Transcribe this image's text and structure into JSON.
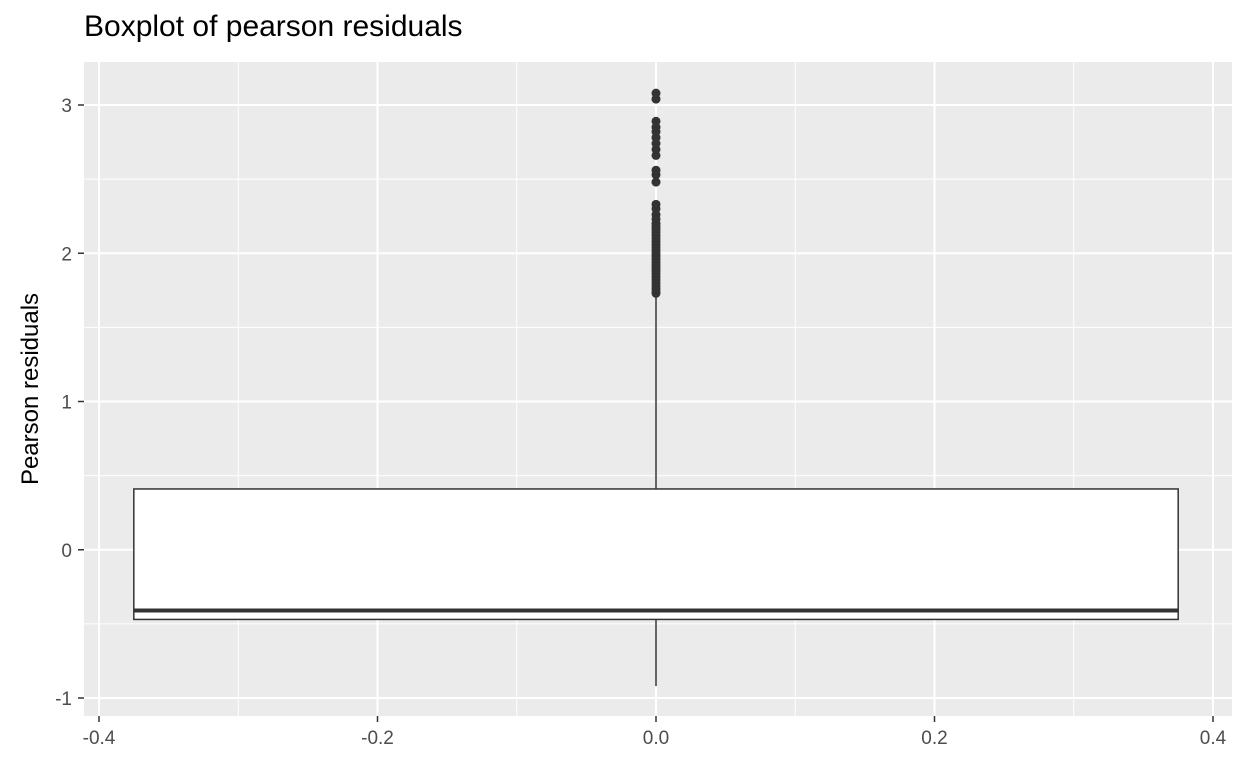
{
  "chart_data": {
    "type": "boxplot",
    "title": "Boxplot of pearson residuals",
    "xlabel": "",
    "ylabel": "Pearson residuals",
    "xlim": [
      -0.4,
      0.4
    ],
    "ylim": [
      -1,
      3
    ],
    "x_ticks": [
      "-0.4",
      "-0.2",
      "0.0",
      "0.2",
      "0.4"
    ],
    "y_ticks": [
      "-1",
      "0",
      "1",
      "2",
      "3"
    ],
    "grid": true,
    "background": "#ebebeb",
    "box": {
      "x": 0,
      "x_extent": [
        -0.375,
        0.375
      ],
      "q1": -0.47,
      "median": -0.41,
      "q3": 0.41,
      "whisker_low": -0.92,
      "whisker_high": 1.72,
      "outliers": [
        1.73,
        1.74,
        1.76,
        1.78,
        1.8,
        1.82,
        1.84,
        1.86,
        1.88,
        1.9,
        1.92,
        1.94,
        1.96,
        1.98,
        2.0,
        2.02,
        2.04,
        2.06,
        2.08,
        2.1,
        2.12,
        2.14,
        2.16,
        2.18,
        2.2,
        2.23,
        2.26,
        2.3,
        2.33,
        2.48,
        2.53,
        2.56,
        2.66,
        2.7,
        2.74,
        2.78,
        2.82,
        2.85,
        2.89,
        3.04,
        3.08
      ]
    }
  }
}
